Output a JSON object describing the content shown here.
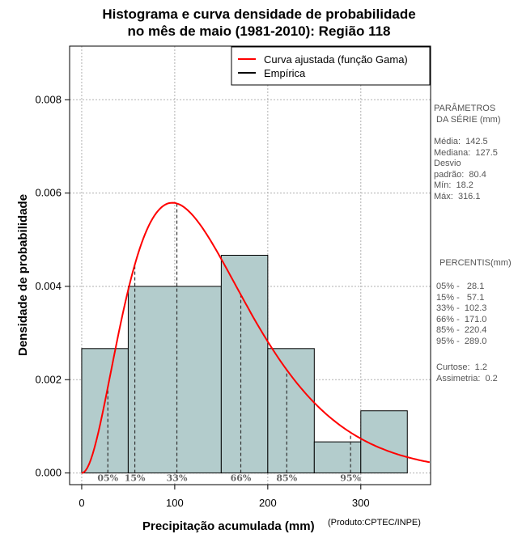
{
  "chart_data": {
    "type": "bar",
    "title_line1": "Histograma e curva densidade de probabilidade",
    "title_line2": "no mês de maio (1981-2010): Região 118",
    "xlabel": "Precipitação acumulada (mm)",
    "ylabel": "Densidade de probabilidade",
    "credit": "(Produto:CPTEC/INPE)",
    "xlim": [
      -13,
      375
    ],
    "ylim": [
      -0.00025,
      0.00915
    ],
    "x_ticks": [
      0,
      100,
      200,
      300
    ],
    "y_ticks": [
      0.0,
      0.002,
      0.004,
      0.006,
      0.008
    ],
    "y_tick_labels": [
      "0.000",
      "0.002",
      "0.004",
      "0.006",
      "0.008"
    ],
    "grid": true,
    "bins": [
      {
        "x0": 0,
        "x1": 50,
        "density": 0.002667
      },
      {
        "x0": 50,
        "x1": 150,
        "density": 0.004
      },
      {
        "x0": 150,
        "x1": 200,
        "density": 0.004667
      },
      {
        "x0": 200,
        "x1": 250,
        "density": 0.002667
      },
      {
        "x0": 250,
        "x1": 300,
        "density": 0.000667
      },
      {
        "x0": 300,
        "x1": 350,
        "density": 0.001333
      }
    ],
    "bar_color": "#b3cccc",
    "curve": {
      "name": "Curva ajustada (função Gama)",
      "shape": 3.16,
      "scale": 45.1,
      "color": "#ff0000"
    },
    "legend": [
      {
        "label": "Curva ajustada (função Gama)",
        "color": "#ff0000"
      },
      {
        "label": "Empírica",
        "color": "#000000"
      }
    ],
    "percentile_markers": [
      {
        "label": "05%",
        "value": 28.1
      },
      {
        "label": "15%",
        "value": 57.1
      },
      {
        "label": "33%",
        "value": 102.3
      },
      {
        "label": "66%",
        "value": 171.0
      },
      {
        "label": "85%",
        "value": 220.4
      },
      {
        "label": "95%",
        "value": 289.0
      }
    ]
  },
  "sidebar": {
    "params_title": "PARÂMETROS\n DA SÉRIE (mm)",
    "params": "Média:  142.5\nMediana:  127.5\nDesvio\npadrão:  80.4\nMín:  18.2\nMáx:  316.1",
    "percentis_title": "PERCENTIS(mm)",
    "percentis": "05% -   28.1\n15% -   57.1\n33% -  102.3\n66% -  171.0\n85% -  220.4\n95% -  289.0",
    "stats": "Curtose:  1.2\nAssimetria:  0.2"
  }
}
